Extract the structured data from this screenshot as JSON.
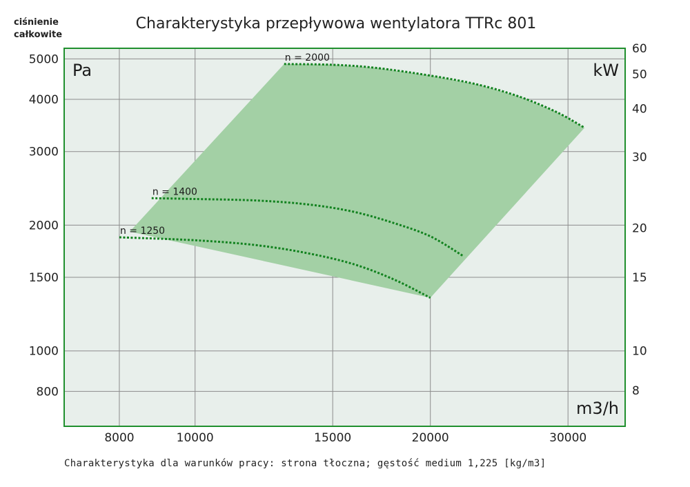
{
  "chart_data": {
    "type": "line",
    "title": "Charakterystyka przepływowa wentylatora TTRc 801",
    "ylabel": "ciśnienie całkowite",
    "y_unit": "Pa",
    "y2_unit": "kW",
    "x_unit": "m3/h",
    "footnote": "Charakterystyka dla warunków pracy: strona tłoczna; gęstość medium 1,225 [kg/m3]",
    "x_scale": "log",
    "y_scale": "log",
    "xlim": [
      6800,
      35500
    ],
    "ylim": [
      660,
      5300
    ],
    "x_ticks": [
      8000,
      10000,
      15000,
      20000,
      30000
    ],
    "y_ticks": [
      800,
      1000,
      1500,
      2000,
      3000,
      4000,
      5000
    ],
    "y2_ticks": [
      8,
      10,
      15,
      20,
      30,
      40,
      50,
      60
    ],
    "y2_map": {
      "8": 805,
      "10": 1000,
      "15": 1500,
      "20": 1970,
      "30": 2910,
      "40": 3800,
      "50": 4600,
      "60": 5300
    },
    "grid": true,
    "series": [
      {
        "name": "n = 2000",
        "x": [
          13000,
          15000,
          17000,
          20000,
          23000,
          26000,
          29000,
          31500
        ],
        "y": [
          4860,
          4840,
          4760,
          4560,
          4340,
          4060,
          3730,
          3420
        ]
      },
      {
        "name": "n = 1400",
        "x": [
          8800,
          10000,
          12000,
          14000,
          16000,
          18000,
          20000,
          22000
        ],
        "y": [
          2320,
          2310,
          2290,
          2240,
          2150,
          2020,
          1880,
          1690
        ]
      },
      {
        "name": "n = 1250",
        "x": [
          8000,
          10000,
          12000,
          14000,
          16000,
          18000,
          20000
        ],
        "y": [
          1870,
          1840,
          1790,
          1710,
          1610,
          1480,
          1340
        ]
      }
    ],
    "area": {
      "x": [
        8250,
        13000,
        15000,
        17000,
        20000,
        23000,
        26000,
        29000,
        31500,
        20000
      ],
      "y": [
        1930,
        4860,
        4840,
        4760,
        4560,
        4340,
        4060,
        3730,
        3420,
        1340
      ]
    },
    "colors": {
      "plot_bg": "#e8efeb",
      "area_fill": "#a3d0a5",
      "curve": "#12821f",
      "frame": "#1f8f2d",
      "grid": "#8c8c8c"
    }
  }
}
